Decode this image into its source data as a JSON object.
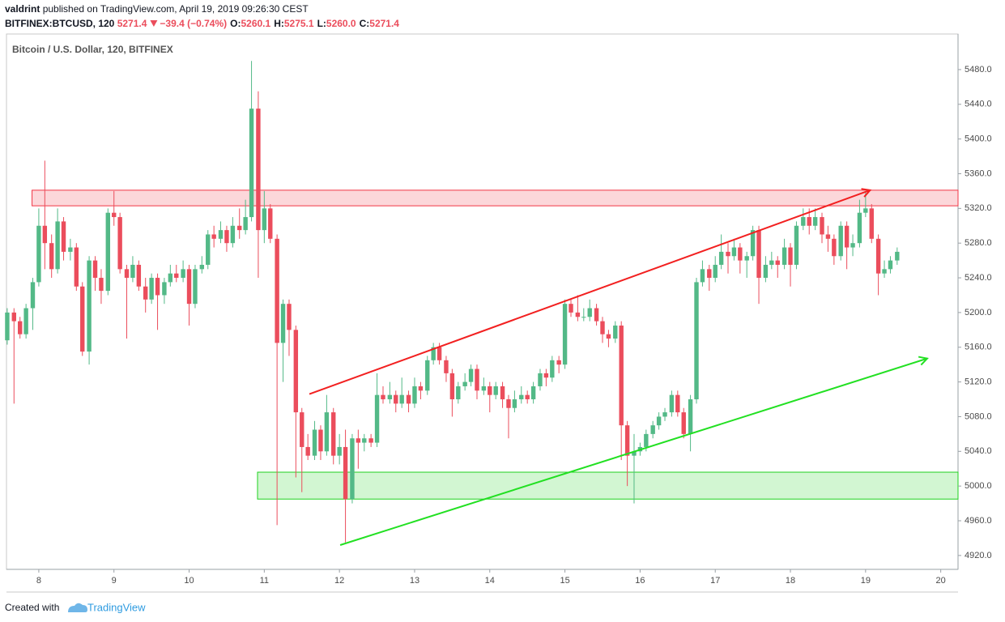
{
  "header": {
    "author": "valdrint",
    "published": "published on TradingView.com, April 19, 2019 09:26:30 CEST",
    "symbol": "BITFINEX:BTCUSD, 120",
    "last": "5271.4",
    "change": "−39.4 (−0.74%)",
    "ohlc": [
      {
        "label": "O:",
        "value": "5260.1"
      },
      {
        "label": "H:",
        "value": "5275.1"
      },
      {
        "label": "L:",
        "value": "5260.0"
      },
      {
        "label": "C:",
        "value": "5271.4"
      }
    ]
  },
  "footer": {
    "created": "Created with",
    "brand": "TradingView"
  },
  "chart_data": {
    "type": "candlestick",
    "title": "Bitcoin / U.S. Dollar, 120, BITFINEX",
    "up_color": "#53b987",
    "down_color": "#eb4d5c",
    "grid": false,
    "xlim": [
      7.57,
      20.23
    ],
    "xticks": [
      8,
      9,
      10,
      11,
      12,
      13,
      14,
      15,
      16,
      17,
      18,
      19,
      20
    ],
    "ylim": [
      4904,
      5521
    ],
    "yticks": [
      {
        "value": 4920,
        "label": "4920.0"
      },
      {
        "value": 4960,
        "label": "4960.0"
      },
      {
        "value": 5000,
        "label": "5000.0"
      },
      {
        "value": 5040,
        "label": "5040.0"
      },
      {
        "value": 5080,
        "label": "5080.0"
      },
      {
        "value": 5120,
        "label": "5120.0"
      },
      {
        "value": 5160,
        "label": "5160.0"
      },
      {
        "value": 5200,
        "label": "5200.0"
      },
      {
        "value": 5240,
        "label": "5240.0"
      },
      {
        "value": 5280,
        "label": "5280.0"
      },
      {
        "value": 5320,
        "label": "5320.0"
      },
      {
        "value": 5360,
        "label": "5360.0"
      },
      {
        "value": 5400,
        "label": "5400.0"
      },
      {
        "value": 5440,
        "label": "5440.0"
      },
      {
        "value": 5480,
        "label": "5480.0"
      }
    ],
    "x": [
      7.58,
      7.67,
      7.75,
      7.83,
      7.92,
      8,
      8.08,
      8.17,
      8.25,
      8.33,
      8.42,
      8.5,
      8.58,
      8.67,
      8.75,
      8.83,
      8.92,
      9,
      9.08,
      9.17,
      9.25,
      9.33,
      9.42,
      9.5,
      9.58,
      9.67,
      9.75,
      9.83,
      9.92,
      10,
      10.08,
      10.17,
      10.25,
      10.33,
      10.42,
      10.5,
      10.58,
      10.67,
      10.75,
      10.83,
      10.92,
      11,
      11.08,
      11.17,
      11.25,
      11.33,
      11.42,
      11.5,
      11.58,
      11.67,
      11.75,
      11.83,
      11.92,
      12,
      12.08,
      12.17,
      12.25,
      12.33,
      12.42,
      12.5,
      12.58,
      12.67,
      12.75,
      12.83,
      12.92,
      13,
      13.08,
      13.17,
      13.25,
      13.33,
      13.42,
      13.5,
      13.58,
      13.67,
      13.75,
      13.83,
      13.92,
      14,
      14.08,
      14.17,
      14.25,
      14.33,
      14.42,
      14.5,
      14.58,
      14.67,
      14.75,
      14.83,
      14.92,
      15,
      15.08,
      15.17,
      15.25,
      15.33,
      15.42,
      15.5,
      15.58,
      15.67,
      15.75,
      15.83,
      15.92,
      16,
      16.08,
      16.17,
      16.25,
      16.33,
      16.42,
      16.5,
      16.58,
      16.67,
      16.75,
      16.83,
      16.92,
      17,
      17.08,
      17.17,
      17.25,
      17.33,
      17.42,
      17.5,
      17.58,
      17.67,
      17.75,
      17.83,
      17.92,
      18,
      18.08,
      18.17,
      18.25,
      18.33,
      18.42,
      18.5,
      18.58,
      18.67,
      18.75,
      18.83,
      18.92,
      19,
      19.08,
      19.17,
      19.25,
      19.33,
      19.42
    ],
    "candles": [
      [
        5168,
        5205,
        5163,
        5200
      ],
      [
        5200,
        5205,
        5095,
        5190
      ],
      [
        5190,
        5195,
        5170,
        5175
      ],
      [
        5175,
        5210,
        5170,
        5205
      ],
      [
        5205,
        5240,
        5180,
        5235
      ],
      [
        5235,
        5320,
        5230,
        5300
      ],
      [
        5300,
        5375,
        5250,
        5280
      ],
      [
        5280,
        5290,
        5240,
        5250
      ],
      [
        5250,
        5320,
        5245,
        5305
      ],
      [
        5305,
        5310,
        5260,
        5270
      ],
      [
        5270,
        5285,
        5260,
        5275
      ],
      [
        5275,
        5280,
        5225,
        5230
      ],
      [
        5230,
        5235,
        5150,
        5155
      ],
      [
        5155,
        5265,
        5140,
        5260
      ],
      [
        5260,
        5265,
        5225,
        5240
      ],
      [
        5240,
        5250,
        5210,
        5225
      ],
      [
        5225,
        5320,
        5220,
        5315
      ],
      [
        5315,
        5340,
        5300,
        5310
      ],
      [
        5310,
        5315,
        5245,
        5250
      ],
      [
        5250,
        5255,
        5170,
        5240
      ],
      [
        5240,
        5265,
        5235,
        5255
      ],
      [
        5255,
        5260,
        5225,
        5230
      ],
      [
        5230,
        5240,
        5200,
        5215
      ],
      [
        5215,
        5245,
        5210,
        5240
      ],
      [
        5240,
        5245,
        5180,
        5220
      ],
      [
        5220,
        5240,
        5210,
        5235
      ],
      [
        5235,
        5255,
        5230,
        5245
      ],
      [
        5245,
        5255,
        5235,
        5240
      ],
      [
        5240,
        5260,
        5235,
        5250
      ],
      [
        5250,
        5255,
        5185,
        5210
      ],
      [
        5210,
        5255,
        5205,
        5250
      ],
      [
        5250,
        5265,
        5245,
        5255
      ],
      [
        5255,
        5295,
        5250,
        5290
      ],
      [
        5290,
        5300,
        5275,
        5285
      ],
      [
        5285,
        5305,
        5280,
        5295
      ],
      [
        5295,
        5300,
        5270,
        5280
      ],
      [
        5280,
        5310,
        5275,
        5300
      ],
      [
        5300,
        5320,
        5285,
        5295
      ],
      [
        5295,
        5330,
        5290,
        5310
      ],
      [
        5310,
        5490,
        5305,
        5435
      ],
      [
        5435,
        5455,
        5240,
        5295
      ],
      [
        5295,
        5340,
        5280,
        5320
      ],
      [
        5320,
        5325,
        5280,
        5285
      ],
      [
        5285,
        5290,
        4955,
        5165
      ],
      [
        5165,
        5215,
        5120,
        5210
      ],
      [
        5210,
        5215,
        5150,
        5180
      ],
      [
        5180,
        5185,
        5010,
        5085
      ],
      [
        5085,
        5090,
        4993,
        5045
      ],
      [
        5045,
        5060,
        5030,
        5035
      ],
      [
        5035,
        5075,
        5030,
        5065
      ],
      [
        5065,
        5070,
        5030,
        5040
      ],
      [
        5040,
        5105,
        5035,
        5085
      ],
      [
        5085,
        5090,
        5025,
        5035
      ],
      [
        5035,
        5060,
        5025,
        5045
      ],
      [
        5045,
        5065,
        4935,
        4985
      ],
      [
        4985,
        5060,
        4980,
        5055
      ],
      [
        5055,
        5065,
        5020,
        5050
      ],
      [
        5050,
        5060,
        5040,
        5055
      ],
      [
        5055,
        5060,
        5045,
        5050
      ],
      [
        5050,
        5130,
        5045,
        5105
      ],
      [
        5105,
        5115,
        5095,
        5100
      ],
      [
        5100,
        5120,
        5095,
        5105
      ],
      [
        5105,
        5110,
        5085,
        5095
      ],
      [
        5095,
        5125,
        5090,
        5105
      ],
      [
        5105,
        5110,
        5085,
        5095
      ],
      [
        5095,
        5125,
        5090,
        5115
      ],
      [
        5115,
        5120,
        5100,
        5110
      ],
      [
        5110,
        5150,
        5105,
        5145
      ],
      [
        5145,
        5165,
        5140,
        5160
      ],
      [
        5160,
        5165,
        5140,
        5145
      ],
      [
        5145,
        5150,
        5120,
        5130
      ],
      [
        5130,
        5135,
        5080,
        5100
      ],
      [
        5100,
        5120,
        5095,
        5115
      ],
      [
        5115,
        5130,
        5110,
        5120
      ],
      [
        5120,
        5140,
        5115,
        5135
      ],
      [
        5135,
        5140,
        5100,
        5110
      ],
      [
        5110,
        5125,
        5105,
        5115
      ],
      [
        5115,
        5120,
        5085,
        5105
      ],
      [
        5105,
        5120,
        5100,
        5115
      ],
      [
        5115,
        5120,
        5090,
        5100
      ],
      [
        5100,
        5105,
        5055,
        5090
      ],
      [
        5090,
        5110,
        5085,
        5100
      ],
      [
        5100,
        5115,
        5095,
        5105
      ],
      [
        5105,
        5110,
        5095,
        5100
      ],
      [
        5100,
        5120,
        5095,
        5115
      ],
      [
        5115,
        5135,
        5110,
        5130
      ],
      [
        5130,
        5135,
        5115,
        5125
      ],
      [
        5125,
        5150,
        5120,
        5145
      ],
      [
        5145,
        5150,
        5130,
        5140
      ],
      [
        5140,
        5215,
        5135,
        5210
      ],
      [
        5210,
        5215,
        5195,
        5200
      ],
      [
        5200,
        5220,
        5190,
        5195
      ],
      [
        5195,
        5205,
        5190,
        5195
      ],
      [
        5195,
        5215,
        5190,
        5205
      ],
      [
        5205,
        5210,
        5185,
        5190
      ],
      [
        5190,
        5195,
        5165,
        5175
      ],
      [
        5175,
        5180,
        5160,
        5170
      ],
      [
        5170,
        5190,
        5165,
        5185
      ],
      [
        5185,
        5190,
        5030,
        5070
      ],
      [
        5070,
        5075,
        5000,
        5035
      ],
      [
        5035,
        5060,
        4980,
        5040
      ],
      [
        5040,
        5050,
        5035,
        5045
      ],
      [
        5045,
        5065,
        5040,
        5060
      ],
      [
        5060,
        5075,
        5055,
        5070
      ],
      [
        5070,
        5085,
        5065,
        5080
      ],
      [
        5080,
        5090,
        5075,
        5085
      ],
      [
        5085,
        5110,
        5080,
        5105
      ],
      [
        5105,
        5110,
        5080,
        5085
      ],
      [
        5085,
        5090,
        5055,
        5060
      ],
      [
        5060,
        5105,
        5040,
        5100
      ],
      [
        5100,
        5240,
        5095,
        5235
      ],
      [
        5235,
        5260,
        5230,
        5250
      ],
      [
        5250,
        5255,
        5225,
        5240
      ],
      [
        5240,
        5265,
        5235,
        5255
      ],
      [
        5255,
        5290,
        5250,
        5270
      ],
      [
        5270,
        5280,
        5245,
        5265
      ],
      [
        5265,
        5285,
        5260,
        5275
      ],
      [
        5275,
        5280,
        5245,
        5260
      ],
      [
        5260,
        5270,
        5240,
        5265
      ],
      [
        5265,
        5300,
        5260,
        5295
      ],
      [
        5295,
        5300,
        5210,
        5240
      ],
      [
        5240,
        5265,
        5235,
        5255
      ],
      [
        5255,
        5270,
        5250,
        5260
      ],
      [
        5260,
        5265,
        5240,
        5255
      ],
      [
        5255,
        5285,
        5250,
        5275
      ],
      [
        5275,
        5280,
        5230,
        5255
      ],
      [
        5255,
        5305,
        5250,
        5300
      ],
      [
        5300,
        5320,
        5295,
        5310
      ],
      [
        5310,
        5320,
        5290,
        5300
      ],
      [
        5300,
        5320,
        5295,
        5310
      ],
      [
        5310,
        5315,
        5280,
        5290
      ],
      [
        5290,
        5300,
        5270,
        5285
      ],
      [
        5285,
        5290,
        5255,
        5265
      ],
      [
        5265,
        5305,
        5260,
        5300
      ],
      [
        5300,
        5305,
        5250,
        5275
      ],
      [
        5275,
        5290,
        5265,
        5280
      ],
      [
        5280,
        5330,
        5275,
        5315
      ],
      [
        5315,
        5340,
        5310,
        5320
      ],
      [
        5320,
        5325,
        5280,
        5285
      ],
      [
        5285,
        5290,
        5220,
        5245
      ],
      [
        5245,
        5260,
        5240,
        5250
      ],
      [
        5250,
        5265,
        5245,
        5260
      ],
      [
        5260,
        5275,
        5255,
        5270
      ]
    ],
    "zones": [
      {
        "from": 7.91,
        "price": [
          5323,
          5341
        ],
        "color": "#f23645"
      },
      {
        "from": 10.91,
        "price": [
          4985,
          5016
        ],
        "color": "#1fd11f"
      }
    ],
    "trend_lines": [
      {
        "x": [
          11.6,
          19.06
        ],
        "y": [
          5106,
          5341
        ],
        "color": "#f22020"
      },
      {
        "x": [
          12.01,
          19.82
        ],
        "y": [
          4932,
          5147
        ],
        "color": "#22e022"
      }
    ]
  }
}
